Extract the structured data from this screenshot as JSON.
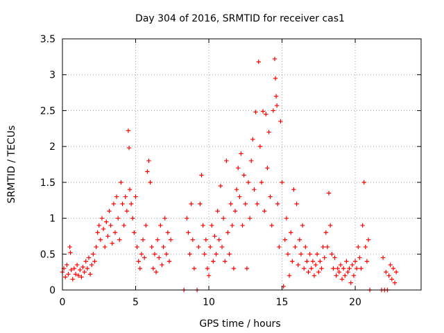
{
  "chart_data": {
    "type": "scatter",
    "title": "Day 304 of 2016, SRMTID for receiver cas1",
    "xlabel": "GPS time / hours",
    "ylabel": "SRMTID / TECUs",
    "xlim": [
      0,
      24.5
    ],
    "ylim": [
      0,
      3.5
    ],
    "xticks": [
      0,
      5,
      10,
      15,
      20
    ],
    "yticks": [
      0,
      0.5,
      1,
      1.5,
      2,
      2.5,
      3,
      3.5
    ],
    "xtick_labels": [
      "0",
      "5",
      "10",
      "15",
      "20"
    ],
    "ytick_labels": [
      "0",
      "0.5",
      "1",
      "1.5",
      "2",
      "2.5",
      "3",
      "3.5"
    ],
    "grid": true,
    "marker": "+",
    "color": "#ff0000",
    "series": [
      {
        "name": "SRMTID",
        "points": [
          [
            0.0,
            0.25
          ],
          [
            0.1,
            0.3
          ],
          [
            0.2,
            0.18
          ],
          [
            0.3,
            0.35
          ],
          [
            0.4,
            0.22
          ],
          [
            0.5,
            0.6
          ],
          [
            0.55,
            0.52
          ],
          [
            0.6,
            0.28
          ],
          [
            0.7,
            0.15
          ],
          [
            0.8,
            0.3
          ],
          [
            0.9,
            0.22
          ],
          [
            1.0,
            0.35
          ],
          [
            1.1,
            0.2
          ],
          [
            1.2,
            0.28
          ],
          [
            1.3,
            0.18
          ],
          [
            1.4,
            0.32
          ],
          [
            1.5,
            0.25
          ],
          [
            1.6,
            0.4
          ],
          [
            1.7,
            0.3
          ],
          [
            1.8,
            0.45
          ],
          [
            1.9,
            0.22
          ],
          [
            2.0,
            0.35
          ],
          [
            2.1,
            0.5
          ],
          [
            2.2,
            0.4
          ],
          [
            2.3,
            0.6
          ],
          [
            2.4,
            0.8
          ],
          [
            2.5,
            0.9
          ],
          [
            2.6,
            0.7
          ],
          [
            2.7,
            1.0
          ],
          [
            2.8,
            0.85
          ],
          [
            2.9,
            0.6
          ],
          [
            3.0,
            0.95
          ],
          [
            3.1,
            0.75
          ],
          [
            3.2,
            1.1
          ],
          [
            3.3,
            0.9
          ],
          [
            3.4,
            0.65
          ],
          [
            3.5,
            1.2
          ],
          [
            3.6,
            0.8
          ],
          [
            3.7,
            1.3
          ],
          [
            3.8,
            1.0
          ],
          [
            3.9,
            0.7
          ],
          [
            4.0,
            1.5
          ],
          [
            4.1,
            1.2
          ],
          [
            4.2,
            0.9
          ],
          [
            4.3,
            1.3
          ],
          [
            4.4,
            1.1
          ],
          [
            4.5,
            2.22
          ],
          [
            4.55,
            1.98
          ],
          [
            4.6,
            1.4
          ],
          [
            4.7,
            1.2
          ],
          [
            4.8,
            1.0
          ],
          [
            4.9,
            0.8
          ],
          [
            5.0,
            1.3
          ],
          [
            5.1,
            0.6
          ],
          [
            5.2,
            0.4
          ],
          [
            5.3,
            0.3
          ],
          [
            5.4,
            0.5
          ],
          [
            5.5,
            0.7
          ],
          [
            5.6,
            0.45
          ],
          [
            5.7,
            0.9
          ],
          [
            5.8,
            1.65
          ],
          [
            5.9,
            1.8
          ],
          [
            6.0,
            1.5
          ],
          [
            6.1,
            0.6
          ],
          [
            6.2,
            0.3
          ],
          [
            6.3,
            0.5
          ],
          [
            6.4,
            0.25
          ],
          [
            6.5,
            0.7
          ],
          [
            6.6,
            0.45
          ],
          [
            6.7,
            0.9
          ],
          [
            6.8,
            0.35
          ],
          [
            6.9,
            0.6
          ],
          [
            7.0,
            1.0
          ],
          [
            7.1,
            0.5
          ],
          [
            7.2,
            0.8
          ],
          [
            7.3,
            0.4
          ],
          [
            7.4,
            0.7
          ],
          [
            8.3,
            0.0
          ],
          [
            8.5,
            1.0
          ],
          [
            8.6,
            0.8
          ],
          [
            8.7,
            0.5
          ],
          [
            8.8,
            1.2
          ],
          [
            8.9,
            0.7
          ],
          [
            9.0,
            0.3
          ],
          [
            9.2,
            0.0
          ],
          [
            9.3,
            0.6
          ],
          [
            9.4,
            1.2
          ],
          [
            9.5,
            1.6
          ],
          [
            9.6,
            0.9
          ],
          [
            9.7,
            0.5
          ],
          [
            9.8,
            0.7
          ],
          [
            9.9,
            0.3
          ],
          [
            10.0,
            0.2
          ],
          [
            10.1,
            0.6
          ],
          [
            10.2,
            0.9
          ],
          [
            10.3,
            0.4
          ],
          [
            10.4,
            0.75
          ],
          [
            10.5,
            0.5
          ],
          [
            10.6,
            1.1
          ],
          [
            10.7,
            0.7
          ],
          [
            10.8,
            1.45
          ],
          [
            10.9,
            0.6
          ],
          [
            11.0,
            1.0
          ],
          [
            11.1,
            0.4
          ],
          [
            11.2,
            1.8
          ],
          [
            11.3,
            0.8
          ],
          [
            11.4,
            0.5
          ],
          [
            11.5,
            1.2
          ],
          [
            11.6,
            0.9
          ],
          [
            11.7,
            0.3
          ],
          [
            11.8,
            1.1
          ],
          [
            11.9,
            1.4
          ],
          [
            12.0,
            1.7
          ],
          [
            12.1,
            1.3
          ],
          [
            12.2,
            1.9
          ],
          [
            12.3,
            0.9
          ],
          [
            12.4,
            1.6
          ],
          [
            12.5,
            1.2
          ],
          [
            12.6,
            0.3
          ],
          [
            12.7,
            1.5
          ],
          [
            12.8,
            1.0
          ],
          [
            12.9,
            1.8
          ],
          [
            13.0,
            2.1
          ],
          [
            13.1,
            1.4
          ],
          [
            13.2,
            2.48
          ],
          [
            13.3,
            1.2
          ],
          [
            13.4,
            3.18
          ],
          [
            13.5,
            2.0
          ],
          [
            13.6,
            1.5
          ],
          [
            13.7,
            2.49
          ],
          [
            13.8,
            1.1
          ],
          [
            13.9,
            2.45
          ],
          [
            14.0,
            1.7
          ],
          [
            14.1,
            2.2
          ],
          [
            14.2,
            1.3
          ],
          [
            14.3,
            0.9
          ],
          [
            14.4,
            2.5
          ],
          [
            14.5,
            3.22
          ],
          [
            14.55,
            2.95
          ],
          [
            14.6,
            2.7
          ],
          [
            14.65,
            2.57
          ],
          [
            14.7,
            1.2
          ],
          [
            14.8,
            0.6
          ],
          [
            14.9,
            2.35
          ],
          [
            15.0,
            1.5
          ],
          [
            15.1,
            0.05
          ],
          [
            15.2,
            0.7
          ],
          [
            15.3,
            1.0
          ],
          [
            15.4,
            0.5
          ],
          [
            15.5,
            0.2
          ],
          [
            15.6,
            0.8
          ],
          [
            15.7,
            0.4
          ],
          [
            15.8,
            1.4
          ],
          [
            15.9,
            0.6
          ],
          [
            16.0,
            1.2
          ],
          [
            16.1,
            0.35
          ],
          [
            16.2,
            0.7
          ],
          [
            16.3,
            0.5
          ],
          [
            16.4,
            0.9
          ],
          [
            16.5,
            0.3
          ],
          [
            16.6,
            0.6
          ],
          [
            16.7,
            0.4
          ],
          [
            16.8,
            0.25
          ],
          [
            16.9,
            0.5
          ],
          [
            17.0,
            0.3
          ],
          [
            17.1,
            0.4
          ],
          [
            17.2,
            0.2
          ],
          [
            17.3,
            0.35
          ],
          [
            17.4,
            0.5
          ],
          [
            17.5,
            0.25
          ],
          [
            17.6,
            0.4
          ],
          [
            17.7,
            0.3
          ],
          [
            17.8,
            0.6
          ],
          [
            17.9,
            0.45
          ],
          [
            18.0,
            0.8
          ],
          [
            18.1,
            0.6
          ],
          [
            18.2,
            1.35
          ],
          [
            18.3,
            0.9
          ],
          [
            18.4,
            0.5
          ],
          [
            18.5,
            0.3
          ],
          [
            18.6,
            0.45
          ],
          [
            18.7,
            0.2
          ],
          [
            18.8,
            0.3
          ],
          [
            18.9,
            0.25
          ],
          [
            19.0,
            0.35
          ],
          [
            19.1,
            0.15
          ],
          [
            19.2,
            0.3
          ],
          [
            19.3,
            0.2
          ],
          [
            19.4,
            0.4
          ],
          [
            19.5,
            0.25
          ],
          [
            19.6,
            0.3
          ],
          [
            19.7,
            0.1
          ],
          [
            19.8,
            0.35
          ],
          [
            19.9,
            0.2
          ],
          [
            20.0,
            0.4
          ],
          [
            20.1,
            0.3
          ],
          [
            20.2,
            0.6
          ],
          [
            20.3,
            0.45
          ],
          [
            20.4,
            0.3
          ],
          [
            20.5,
            0.9
          ],
          [
            20.6,
            1.5
          ],
          [
            20.7,
            0.6
          ],
          [
            20.8,
            0.4
          ],
          [
            20.9,
            0.7
          ],
          [
            21.0,
            0.0
          ],
          [
            21.8,
            0.0
          ],
          [
            21.9,
            0.45
          ],
          [
            22.0,
            0.0
          ],
          [
            22.1,
            0.25
          ],
          [
            22.2,
            0.0
          ],
          [
            22.3,
            0.2
          ],
          [
            22.4,
            0.35
          ],
          [
            22.5,
            0.15
          ],
          [
            22.6,
            0.3
          ],
          [
            22.7,
            0.1
          ],
          [
            22.8,
            0.25
          ]
        ]
      }
    ]
  }
}
